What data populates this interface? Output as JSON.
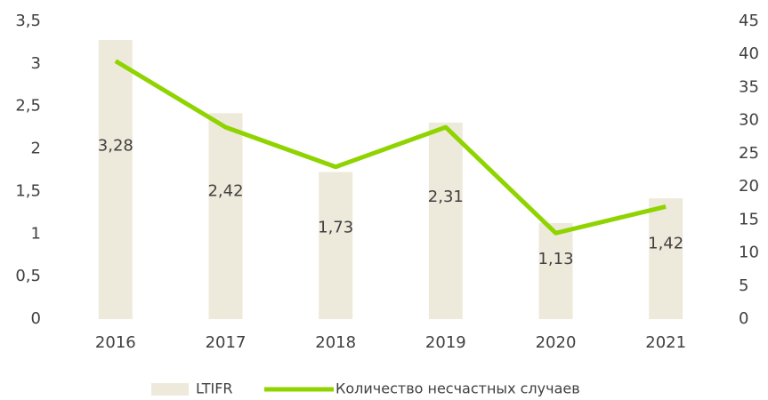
{
  "chart_data": {
    "type": "bar_line",
    "categories": [
      "2016",
      "2017",
      "2018",
      "2019",
      "2020",
      "2021"
    ],
    "series": [
      {
        "name": "LTIFR",
        "type": "bar",
        "color": "#eeeadb",
        "values": [
          3.28,
          2.42,
          1.73,
          2.31,
          1.13,
          1.42
        ],
        "value_labels": [
          "3,28",
          "2,42",
          "1,73",
          "2,31",
          "1,13",
          "1,42"
        ]
      },
      {
        "name": "Количество несчастных случаев",
        "type": "line",
        "axis": "y2",
        "color": "#8fd400",
        "values": [
          39,
          29,
          23,
          29,
          13,
          17
        ]
      }
    ],
    "ylim": [
      0,
      3.5
    ],
    "yticks": [
      0,
      {
        "value": 0.5,
        "label": "0,5"
      },
      1,
      {
        "value": 1.5,
        "label": "1,5"
      },
      2,
      {
        "value": 2.5,
        "label": "2,5"
      },
      3,
      {
        "value": 3.5,
        "label": "3,5"
      }
    ],
    "y2lim": [
      0,
      45
    ],
    "y2ticks": [
      0,
      5,
      10,
      15,
      20,
      25,
      30,
      35,
      40,
      45
    ],
    "legend": "bottom"
  }
}
